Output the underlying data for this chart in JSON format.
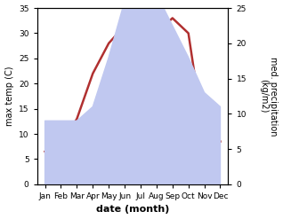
{
  "months": [
    "Jan",
    "Feb",
    "Mar",
    "Apr",
    "May",
    "Jun",
    "Jul",
    "Aug",
    "Sep",
    "Oct",
    "Nov",
    "Dec"
  ],
  "month_x": [
    1,
    2,
    3,
    4,
    5,
    6,
    7,
    8,
    9,
    10,
    11,
    12
  ],
  "temperature": [
    6.5,
    8.0,
    13.0,
    22.0,
    28.0,
    31.5,
    27.5,
    30.0,
    33.0,
    30.0,
    9.0,
    8.5
  ],
  "precipitation": [
    9.0,
    9.0,
    9.0,
    11.0,
    18.0,
    26.0,
    34.0,
    27.0,
    22.5,
    18.0,
    13.0,
    11.0
  ],
  "temp_color": "#b03030",
  "precip_color": "#c0c8f0",
  "temp_ylim_min": 0,
  "temp_ylim_max": 35,
  "precip_ylim_min": 0,
  "precip_ylim_max": 25,
  "temp_yticks": [
    0,
    5,
    10,
    15,
    20,
    25,
    30,
    35
  ],
  "precip_yticks": [
    0,
    5,
    10,
    15,
    20,
    25
  ],
  "xlabel": "date (month)",
  "ylabel_left": "max temp (C)",
  "ylabel_right": "med. precipitation\n(kg/m2)",
  "figsize": [
    3.18,
    2.47
  ],
  "dpi": 100,
  "linewidth": 1.8,
  "xlabel_fontsize": 8,
  "ylabel_fontsize": 7,
  "tick_fontsize": 6.5
}
